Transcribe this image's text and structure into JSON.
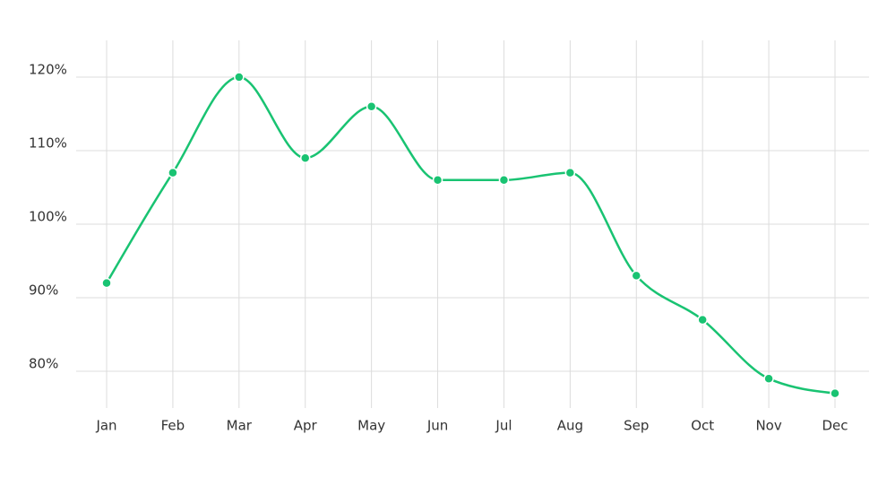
{
  "chart_data": {
    "type": "line",
    "categories": [
      "Jan",
      "Feb",
      "Mar",
      "Apr",
      "May",
      "Jun",
      "Jul",
      "Aug",
      "Sep",
      "Oct",
      "Nov",
      "Dec"
    ],
    "series": [
      {
        "color": "#19c372",
        "values": [
          92,
          107,
          120,
          109,
          116,
          106,
          106,
          107,
          93,
          87,
          79,
          77
        ]
      }
    ],
    "ylim": [
      75,
      125
    ],
    "yticks": [
      {
        "value": 80,
        "label": "80%"
      },
      {
        "value": 90,
        "label": "90%"
      },
      {
        "value": 100,
        "label": "100%"
      },
      {
        "value": 110,
        "label": "110%"
      },
      {
        "value": 120,
        "label": "120%"
      }
    ],
    "grid": true,
    "smooth": true
  }
}
